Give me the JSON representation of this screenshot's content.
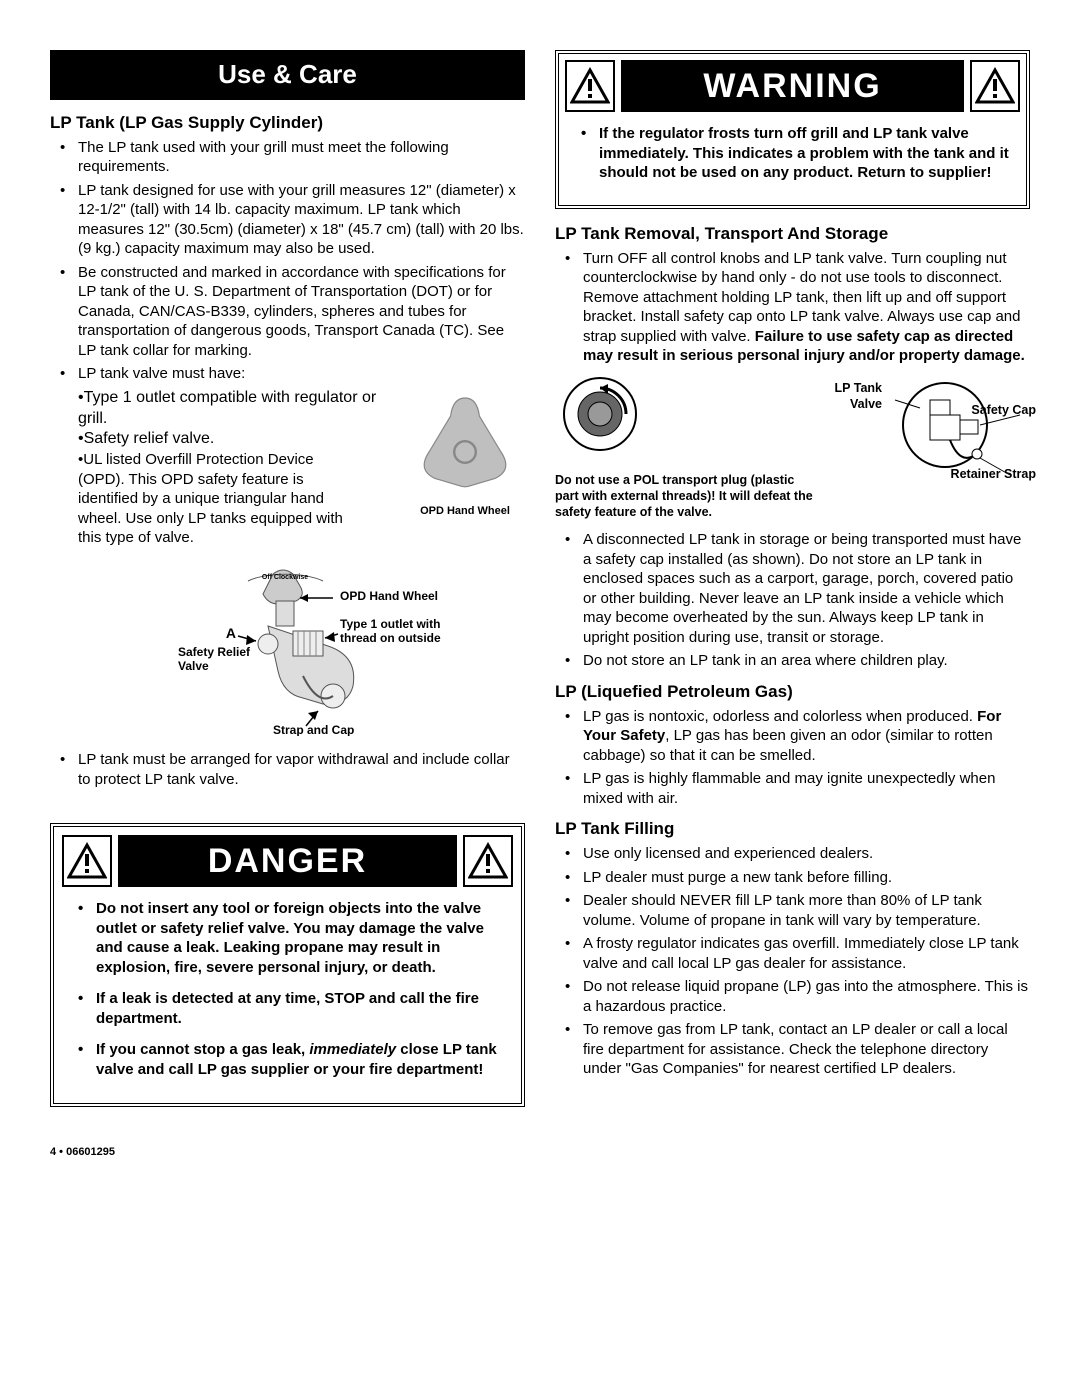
{
  "left": {
    "header": "Use & Care",
    "lp_tank_heading": "LP Tank (LP Gas Supply Cylinder)",
    "items": [
      "The LP tank used with your grill must meet the following requirements.",
      "LP tank designed for use with your grill measures 12\" (diameter) x 12-1/2\" (tall) with 14 lb. capacity maximum. LP tank which measures 12\" (30.5cm) (diameter) x 18\" (45.7 cm) (tall) with 20 lbs. (9 kg.) capacity maximum may also be used.",
      "Be constructed and marked in accordance with specifications for LP tank of the U. S. Department of Transportation (DOT) or for Canada, CAN/CAS-B339, cylinders, spheres and tubes for transportation of dangerous goods, Transport Canada (TC). See LP tank collar for marking.",
      "LP tank valve must have:"
    ],
    "valve_sub": [
      "•Type 1 outlet compatible with regulator or grill.",
      "•Safety relief valve.",
      "•UL listed Overfill Protection Device (OPD). This OPD safety feature is identified by a unique triangular hand wheel. Use only LP tanks equipped with this type of valve."
    ],
    "opd_caption": "OPD Hand Wheel",
    "valve_fig": {
      "off_clockwise": "Off Clockwise",
      "opd_hand_wheel": "OPD Hand Wheel",
      "type1": "Type 1 outlet with thread on outside",
      "a": "A",
      "safety_relief": "Safety Relief Valve",
      "strap_cap": "Strap and Cap"
    },
    "after_fig": "LP tank must be arranged for vapor withdrawal and include collar to protect LP tank valve.",
    "danger": {
      "title": "DANGER",
      "items": [
        "Do not insert any tool or foreign objects into the valve outlet or safety relief valve. You may damage the valve and cause a leak. Leaking propane may result in explosion, fire, severe personal injury, or death.",
        "If a leak is detected at any time, STOP and call the fire department.",
        "If you cannot stop a gas leak, <em>immediately</em> close LP tank valve and call LP gas supplier or your fire department!"
      ]
    }
  },
  "right": {
    "warning": {
      "title": "WARNING",
      "text": "If the regulator frosts turn off grill and LP tank valve immediately. This indicates a problem with the tank and it should not be used on any product. Return to supplier!"
    },
    "removal_heading": "LP Tank Removal, Transport And Storage",
    "removal_first_html": "Turn OFF all control knobs and LP tank valve. Turn coupling nut counterclockwise by hand only - do not use tools to disconnect. Remove attachment holding LP tank, then lift up and off support bracket. Install safety cap onto LP tank valve. Always use cap and strap supplied with valve. <span class=\"bold\">Failure to use safety cap as directed may result in serious personal injury and/or property damage.</span>",
    "diagram": {
      "lp_tank_valve": "LP Tank Valve",
      "safety_cap": "Safety Cap",
      "retainer_strap": "Retainer Strap",
      "pol_note": "Do not use a POL transport plug (plastic part with external threads)! It will defeat the safety feature of the valve."
    },
    "removal_rest": [
      "A disconnected LP tank in storage or being transported must have a safety cap installed (as shown). Do not store an LP tank in enclosed spaces such as a carport, garage, porch, covered patio or other building. Never leave an LP tank inside a vehicle which may become overheated by the sun. Always keep LP tank in upright position during use, transit or storage.",
      "Do not store an LP tank in an area where children play."
    ],
    "lp_gas_heading": "LP (Liquefied Petroleum Gas)",
    "lp_gas_items": [
      "LP gas is nontoxic, odorless and colorless when produced. <span class=\"bold\">For Your Safety</span>, LP gas has been given an odor (similar to rotten cabbage) so that it can be smelled.",
      "LP gas is highly flammable and may ignite unexpectedly when mixed with air."
    ],
    "filling_heading": "LP Tank Filling",
    "filling_items": [
      "Use only licensed and experienced dealers.",
      "LP dealer must purge a new  tank before filling.",
      "Dealer should NEVER fill LP tank more than 80% of LP tank volume. Volume of propane in tank will vary by temperature.",
      "A frosty regulator indicates gas overfill. Immediately close LP tank valve and call local LP gas dealer for assistance.",
      "Do not release liquid propane (LP) gas into the atmosphere. This is a hazardous practice.",
      "To remove gas from LP tank, contact an LP dealer or call a local fire department for assistance. Check the telephone directory under \"Gas Companies\" for nearest certified LP dealers."
    ]
  },
  "footer": "4  •  06601295"
}
